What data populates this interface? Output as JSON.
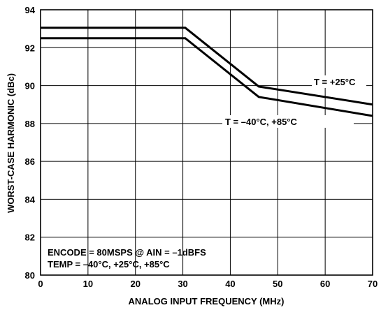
{
  "chart_data": {
    "type": "line",
    "xlabel": "ANALOG INPUT FREQUENCY (MHz)",
    "ylabel": "WORST-CASE HARMONIC (dBc)",
    "xlim": [
      0,
      70
    ],
    "ylim": [
      80,
      94
    ],
    "xticks": [
      0,
      10,
      20,
      30,
      40,
      50,
      60,
      70
    ],
    "yticks": [
      80,
      82,
      84,
      86,
      88,
      90,
      92,
      94
    ],
    "grid": true,
    "series": [
      {
        "name": "T = +25°C",
        "x": [
          0,
          30.5,
          46,
          70
        ],
        "y": [
          93.05,
          93.05,
          89.95,
          89.0
        ]
      },
      {
        "name": "T = –40°C, +85°C",
        "x": [
          0,
          30.5,
          46,
          70
        ],
        "y": [
          92.5,
          92.5,
          89.4,
          88.4
        ]
      }
    ],
    "annotations": [
      {
        "text": "ENCODE = 80MSPS @ AIN = –1dBFS"
      },
      {
        "text": "TEMP = –40°C, +25°C, +85°C"
      }
    ]
  }
}
